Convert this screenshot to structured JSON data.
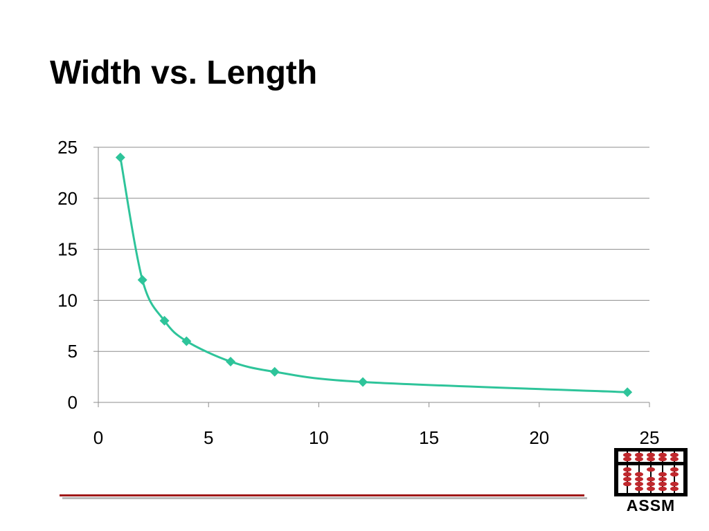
{
  "slide": {
    "title": "Width vs. Length"
  },
  "logo": {
    "text": "ASSM",
    "colors": {
      "frame": "#000000",
      "bead": "#c0282d",
      "rod": "#ffffff"
    }
  },
  "colors": {
    "series": "#2ec49a",
    "grid": "#8c8c8c",
    "footer_rule": "#a01818",
    "footer_rule_shadow": "#b9b9b9"
  },
  "chart_data": {
    "type": "scatter",
    "title": "",
    "xlabel": "",
    "ylabel": "",
    "xlim": [
      0,
      25
    ],
    "ylim": [
      0,
      25
    ],
    "x_ticks": [
      0,
      5,
      10,
      15,
      20,
      25
    ],
    "y_ticks": [
      0,
      5,
      10,
      15,
      20,
      25
    ],
    "grid": "horizontal",
    "legend": "none",
    "line": "smooth",
    "marker": "diamond",
    "series": [
      {
        "x": [
          1,
          2,
          3,
          4,
          6,
          8,
          12,
          24
        ],
        "y": [
          24,
          12,
          8,
          6,
          4,
          3,
          2,
          1
        ]
      }
    ]
  }
}
